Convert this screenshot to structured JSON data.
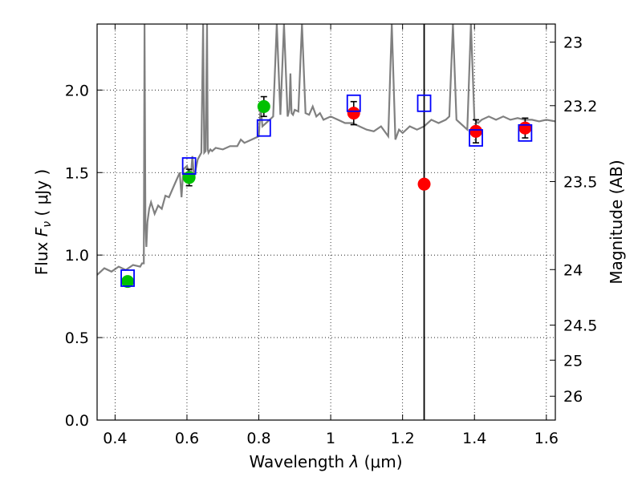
{
  "chart_data": {
    "type": "scatter",
    "xlabel_prefix": "Wavelength  ",
    "xlabel_lambda": "λ",
    "xlabel_unit": " (μm)",
    "ylabel_prefix": "Flux  ",
    "ylabel_F": "F",
    "ylabel_sub": "ν",
    "ylabel_unit": "  ( μJy )",
    "y2label": "Magnitude (AB)",
    "xlim": [
      0.35,
      1.625
    ],
    "ylim": [
      0.0,
      2.4
    ],
    "grid": true,
    "x_ticks": [
      {
        "value": 0.4,
        "label": "0.4"
      },
      {
        "value": 0.6,
        "label": "0.6"
      },
      {
        "value": 0.8,
        "label": "0.8"
      },
      {
        "value": 1.0,
        "label": "1"
      },
      {
        "value": 1.2,
        "label": "1.2"
      },
      {
        "value": 1.4,
        "label": "1.4"
      },
      {
        "value": 1.6,
        "label": "1.6"
      }
    ],
    "y_ticks": [
      {
        "value": 0.0,
        "label": "0.0"
      },
      {
        "value": 0.5,
        "label": "0.5"
      },
      {
        "value": 1.0,
        "label": "1.0"
      },
      {
        "value": 1.5,
        "label": "1.5"
      },
      {
        "value": 2.0,
        "label": "2.0"
      }
    ],
    "mag_ticks": [
      {
        "mag": 23,
        "label": "23"
      },
      {
        "mag": 23.2,
        "label": "23.2"
      },
      {
        "mag": 23.5,
        "label": "23.5"
      },
      {
        "mag": 24,
        "label": "24"
      },
      {
        "mag": 24.5,
        "label": "24.5"
      },
      {
        "mag": 25,
        "label": "25"
      },
      {
        "mag": 26,
        "label": "26"
      }
    ],
    "vertical_line_x": 1.26,
    "colors": {
      "spectrum": "#808080",
      "green": "#00c000",
      "red": "#ff0000",
      "model_box": "#0000ff",
      "errorbar": "#000000",
      "vline": "#000000"
    },
    "spectrum": {
      "x": [
        0.35,
        0.37,
        0.39,
        0.41,
        0.43,
        0.45,
        0.47,
        0.475,
        0.48,
        0.482,
        0.4845,
        0.487,
        0.49,
        0.495,
        0.5,
        0.51,
        0.52,
        0.53,
        0.54,
        0.55,
        0.56,
        0.57,
        0.58,
        0.585,
        0.59,
        0.6,
        0.61,
        0.615,
        0.62,
        0.63,
        0.64,
        0.645,
        0.648,
        0.652,
        0.656,
        0.658,
        0.66,
        0.665,
        0.67,
        0.68,
        0.7,
        0.72,
        0.74,
        0.75,
        0.76,
        0.78,
        0.8,
        0.805,
        0.81,
        0.82,
        0.83,
        0.84,
        0.85,
        0.86,
        0.87,
        0.88,
        0.885,
        0.888,
        0.891,
        0.895,
        0.9,
        0.91,
        0.92,
        0.93,
        0.94,
        0.95,
        0.96,
        0.97,
        0.98,
        1.0,
        1.02,
        1.04,
        1.06,
        1.08,
        1.1,
        1.12,
        1.14,
        1.16,
        1.17,
        1.18,
        1.19,
        1.2,
        1.22,
        1.24,
        1.26,
        1.28,
        1.3,
        1.32,
        1.33,
        1.34,
        1.35,
        1.36,
        1.37,
        1.38,
        1.39,
        1.4,
        1.41,
        1.42,
        1.44,
        1.46,
        1.48,
        1.5,
        1.52,
        1.54,
        1.56,
        1.58,
        1.6,
        1.625
      ],
      "y": [
        0.88,
        0.92,
        0.9,
        0.93,
        0.91,
        0.94,
        0.93,
        0.95,
        0.95,
        2.4,
        1.2,
        1.05,
        1.2,
        1.28,
        1.32,
        1.25,
        1.3,
        1.28,
        1.36,
        1.35,
        1.4,
        1.45,
        1.5,
        1.35,
        1.52,
        1.54,
        1.45,
        1.6,
        1.47,
        1.58,
        1.62,
        2.4,
        1.62,
        1.63,
        2.4,
        1.64,
        1.62,
        1.64,
        1.63,
        1.65,
        1.64,
        1.66,
        1.66,
        1.7,
        1.68,
        1.7,
        1.72,
        1.9,
        1.78,
        1.8,
        1.82,
        1.84,
        2.4,
        1.85,
        2.4,
        1.84,
        1.88,
        2.1,
        1.86,
        1.85,
        1.88,
        1.87,
        2.4,
        1.86,
        1.85,
        1.9,
        1.84,
        1.86,
        1.82,
        1.84,
        1.82,
        1.8,
        1.8,
        1.78,
        1.76,
        1.75,
        1.78,
        1.72,
        2.4,
        1.7,
        1.76,
        1.74,
        1.78,
        1.76,
        1.78,
        1.82,
        1.8,
        1.82,
        1.84,
        2.4,
        1.82,
        1.8,
        1.78,
        1.76,
        2.4,
        1.82,
        1.8,
        1.82,
        1.84,
        1.82,
        1.84,
        1.82,
        1.83,
        1.82,
        1.82,
        1.81,
        1.82,
        1.81
      ]
    },
    "series": [
      {
        "marker": "circle-green",
        "points": [
          {
            "x": 0.435,
            "y": 0.84,
            "err": 0.03
          },
          {
            "x": 0.606,
            "y": 1.47,
            "err": 0.05
          },
          {
            "x": 0.814,
            "y": 1.9,
            "err": 0.06
          }
        ]
      },
      {
        "marker": "circle-red",
        "points": [
          {
            "x": 1.064,
            "y": 1.86,
            "err": 0.07
          },
          {
            "x": 1.26,
            "y": 1.43,
            "err": 0.0
          },
          {
            "x": 1.404,
            "y": 1.75,
            "err": 0.07
          },
          {
            "x": 1.541,
            "y": 1.77,
            "err": 0.06
          }
        ]
      },
      {
        "marker": "square-open-blue",
        "points": [
          {
            "x": 0.435,
            "y": 0.86
          },
          {
            "x": 0.606,
            "y": 1.54
          },
          {
            "x": 0.814,
            "y": 1.77
          },
          {
            "x": 1.064,
            "y": 1.92
          },
          {
            "x": 1.26,
            "y": 1.92
          },
          {
            "x": 1.404,
            "y": 1.71
          },
          {
            "x": 1.541,
            "y": 1.74
          }
        ]
      }
    ]
  }
}
